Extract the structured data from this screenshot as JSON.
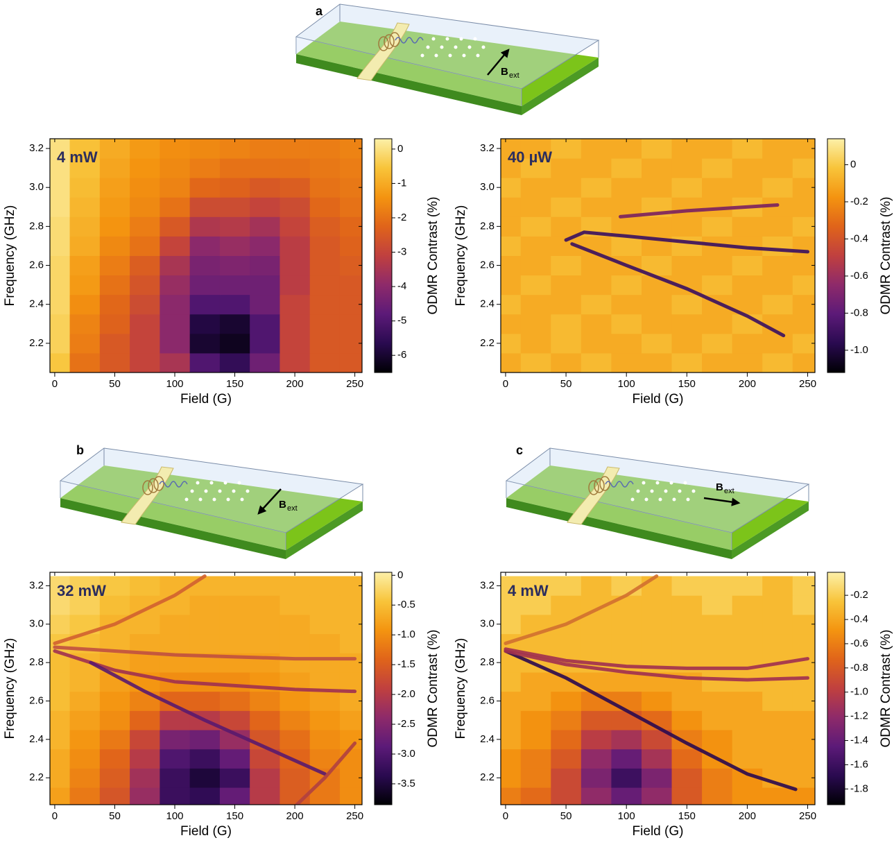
{
  "chart_data": [
    {
      "type": "heatmap",
      "panel_title": "4 mW",
      "xlabel": "Field (G)",
      "ylabel": "Frequency (GHz)",
      "zlabel": "ODMR Contrast (%)",
      "x": [
        0,
        25,
        50,
        75,
        100,
        125,
        150,
        175,
        200,
        225,
        250
      ],
      "y": [
        2.1,
        2.2,
        2.3,
        2.4,
        2.5,
        2.6,
        2.7,
        2.8,
        2.9,
        3.0,
        3.1,
        3.2
      ],
      "z": [
        [
          -0.5,
          -2,
          -2.5,
          -3,
          -3.5,
          -5,
          -5.5,
          -4.5,
          -3,
          -2.5,
          -2.5
        ],
        [
          -0.3,
          -1.8,
          -2.5,
          -3,
          -4,
          -6,
          -6.2,
          -5,
          -3,
          -2.5,
          -2.5
        ],
        [
          -0.3,
          -1.7,
          -2.3,
          -3,
          -4,
          -5.8,
          -6,
          -5,
          -3,
          -2.5,
          -2.5
        ],
        [
          -0.2,
          -1.5,
          -2.2,
          -2.8,
          -4,
          -5,
          -5,
          -4.5,
          -3,
          -2.5,
          -2.5
        ],
        [
          -0.2,
          -1.3,
          -2,
          -2.6,
          -3.8,
          -4.5,
          -4.5,
          -4.5,
          -3.2,
          -2.5,
          -2.5
        ],
        [
          -0.2,
          -1.2,
          -1.8,
          -2.4,
          -3.5,
          -4.3,
          -4.2,
          -4.3,
          -3.2,
          -2.5,
          -2.4
        ],
        [
          -0.1,
          -1,
          -1.6,
          -2,
          -3,
          -4,
          -3.8,
          -4,
          -3.2,
          -2.5,
          -2.3
        ],
        [
          -0.1,
          -0.9,
          -1.4,
          -1.8,
          -2.5,
          -3.4,
          -3.3,
          -3.6,
          -3,
          -2.4,
          -2.2
        ],
        [
          0,
          -0.8,
          -1.3,
          -1.6,
          -2,
          -2.8,
          -2.8,
          -3,
          -2.8,
          -2.2,
          -2
        ],
        [
          0,
          -0.7,
          -1.2,
          -1.5,
          -1.7,
          -2.2,
          -2.3,
          -2.5,
          -2.4,
          -2,
          -1.9
        ],
        [
          0,
          -0.6,
          -1.1,
          -1.4,
          -1.6,
          -1.8,
          -2,
          -2,
          -2,
          -1.9,
          -1.8
        ],
        [
          0,
          -0.6,
          -1,
          -1.3,
          -1.5,
          -1.6,
          -1.7,
          -1.8,
          -1.8,
          -1.8,
          -1.7
        ]
      ],
      "xlim": [
        -4,
        256
      ],
      "ylim": [
        2.05,
        3.25
      ],
      "zlim": [
        -6.5,
        0.3
      ],
      "xticks": [
        0,
        50,
        100,
        150,
        200,
        250
      ],
      "yticks": [
        2.2,
        2.4,
        2.6,
        2.8,
        {
          "value": 3,
          "label": "3.0"
        },
        3.2
      ],
      "zticks": [
        0,
        -1,
        -2,
        -3,
        -4,
        -5,
        -6
      ],
      "colormap": [
        "#000004",
        "#2a0a50",
        "#5c1a78",
        "#8e2a6a",
        "#c0403f",
        "#e0641a",
        "#f49410",
        "#f8c43a",
        "#fcf0a8"
      ],
      "lines": []
    },
    {
      "type": "heatmap",
      "panel_title": "40 µW",
      "xlabel": "Field (G)",
      "ylabel": "Frequency (GHz)",
      "zlabel": "ODMR Contrast (%)",
      "x": [
        0,
        25,
        50,
        75,
        100,
        125,
        150,
        175,
        200,
        225,
        250
      ],
      "y": [
        2.1,
        2.2,
        2.3,
        2.4,
        2.5,
        2.6,
        2.7,
        2.8,
        2.9,
        3.0,
        3.1,
        3.2
      ],
      "z": [
        [
          -0.1,
          -0.05,
          -0.1,
          -0.05,
          -0.1,
          -0.1,
          -0.05,
          -0.1,
          -0.1,
          -0.05,
          -0.1
        ],
        [
          -0.05,
          -0.1,
          -0.05,
          -0.1,
          -0.1,
          -0.05,
          -0.1,
          -0.05,
          -0.1,
          -0.1,
          -0.05
        ],
        [
          -0.1,
          -0.1,
          -0.05,
          -0.1,
          -0.05,
          -0.1,
          -0.1,
          -0.1,
          -0.05,
          -0.1,
          -0.1
        ],
        [
          -0.05,
          -0.1,
          -0.1,
          -0.05,
          -0.1,
          -0.1,
          -0.05,
          -0.1,
          -0.1,
          -0.05,
          -0.1
        ],
        [
          -0.1,
          -0.05,
          -0.1,
          -0.1,
          -0.05,
          -0.1,
          -0.1,
          -0.05,
          -0.1,
          -0.1,
          -0.05
        ],
        [
          -0.1,
          -0.1,
          -0.05,
          -0.1,
          -0.1,
          -0.05,
          -0.1,
          -0.1,
          -0.05,
          -0.1,
          -0.1
        ],
        [
          -0.05,
          -0.1,
          -0.1,
          -0.1,
          -0.05,
          -0.1,
          -0.05,
          -0.1,
          -0.1,
          -0.05,
          -0.1
        ],
        [
          -0.1,
          -0.05,
          -0.1,
          -0.05,
          -0.1,
          -0.1,
          -0.1,
          -0.05,
          -0.1,
          -0.1,
          -0.05
        ],
        [
          -0.1,
          -0.1,
          -0.05,
          -0.1,
          -0.1,
          -0.05,
          -0.1,
          -0.1,
          -0.05,
          -0.1,
          -0.1
        ],
        [
          -0.05,
          -0.1,
          -0.1,
          -0.05,
          -0.1,
          -0.1,
          -0.05,
          -0.1,
          -0.1,
          -0.05,
          -0.1
        ],
        [
          -0.1,
          -0.05,
          -0.1,
          -0.1,
          -0.05,
          -0.1,
          -0.1,
          -0.05,
          -0.1,
          -0.1,
          -0.05
        ],
        [
          -0.1,
          -0.1,
          -0.05,
          -0.1,
          -0.1,
          -0.05,
          -0.1,
          -0.1,
          -0.05,
          -0.1,
          -0.1
        ]
      ],
      "xlim": [
        -4,
        256
      ],
      "ylim": [
        2.05,
        3.25
      ],
      "zlim": [
        -1.12,
        0.14
      ],
      "xticks": [
        0,
        50,
        100,
        150,
        200,
        250
      ],
      "yticks": [
        2.2,
        2.4,
        2.6,
        2.8,
        {
          "value": 3,
          "label": "3.0"
        },
        3.2
      ],
      "zticks": [
        0,
        -0.2,
        -0.4,
        -0.6,
        -0.8,
        {
          "value": -1,
          "label": "-1.0"
        }
      ],
      "colormap": [
        "#000004",
        "#2a0a50",
        "#5c1a78",
        "#8e2a6a",
        "#c0403f",
        "#e0641a",
        "#f49410",
        "#f8c43a",
        "#fcf0a8"
      ],
      "lines": [
        {
          "x": [
            95,
            150,
            225
          ],
          "values": [
            2.85,
            2.88,
            2.91
          ],
          "color": "#7a2060"
        },
        {
          "x": [
            50,
            65,
            100,
            150,
            200,
            250
          ],
          "values": [
            2.73,
            2.77,
            2.75,
            2.72,
            2.69,
            2.67
          ],
          "color": "#3a1060"
        },
        {
          "x": [
            55,
            100,
            150,
            200,
            230
          ],
          "values": [
            2.71,
            2.6,
            2.48,
            2.34,
            2.24
          ],
          "color": "#3a1060"
        }
      ]
    },
    {
      "type": "heatmap",
      "panel_title": "32 mW",
      "xlabel": "Field (G)",
      "ylabel": "Frequency (GHz)",
      "zlabel": "ODMR Contrast (%)",
      "x": [
        0,
        25,
        50,
        75,
        100,
        125,
        150,
        175,
        200,
        225,
        250
      ],
      "y": [
        2.1,
        2.2,
        2.3,
        2.4,
        2.5,
        2.6,
        2.7,
        2.8,
        2.9,
        3.0,
        3.1,
        3.2
      ],
      "z": [
        [
          -0.8,
          -1.2,
          -1.6,
          -2.3,
          -3.2,
          -3.3,
          -2.8,
          -2,
          -1.5,
          -1.2,
          -1
        ],
        [
          -0.7,
          -1.1,
          -1.5,
          -2.2,
          -3.2,
          -3.5,
          -3.2,
          -2,
          -1.5,
          -1.2,
          -1
        ],
        [
          -0.7,
          -1,
          -1.4,
          -2,
          -3,
          -3.2,
          -2.8,
          -1.8,
          -1.4,
          -1.1,
          -1
        ],
        [
          -0.6,
          -0.9,
          -1.2,
          -1.8,
          -2.6,
          -2.7,
          -2.3,
          -1.6,
          -1.3,
          -1,
          -0.9
        ],
        [
          -0.6,
          -0.8,
          -1,
          -1.4,
          -2,
          -2,
          -1.8,
          -1.4,
          -1.1,
          -0.9,
          -0.8
        ],
        [
          -0.5,
          -0.7,
          -0.9,
          -1.1,
          -1.4,
          -1.4,
          -1.3,
          -1.1,
          -0.9,
          -0.8,
          -0.7
        ],
        [
          -0.5,
          -0.6,
          -0.8,
          -0.9,
          -1,
          -1,
          -1,
          -0.9,
          -0.8,
          -0.7,
          -0.7
        ],
        [
          -0.5,
          -0.6,
          -0.7,
          -0.8,
          -0.8,
          -0.8,
          -0.8,
          -0.8,
          -0.7,
          -0.7,
          -0.7
        ],
        [
          -0.4,
          -0.5,
          -0.6,
          -0.7,
          -0.7,
          -0.7,
          -0.7,
          -0.7,
          -0.7,
          -0.7,
          -0.6
        ],
        [
          -0.3,
          -0.4,
          -0.6,
          -0.6,
          -0.7,
          -0.7,
          -0.7,
          -0.7,
          -0.7,
          -0.6,
          -0.6
        ],
        [
          -0.2,
          -0.3,
          -0.5,
          -0.6,
          -0.6,
          -0.7,
          -0.7,
          -0.7,
          -0.6,
          -0.6,
          -0.6
        ],
        [
          -0.2,
          -0.3,
          -0.4,
          -0.5,
          -0.6,
          -0.6,
          -0.6,
          -0.6,
          -0.6,
          -0.6,
          -0.6
        ]
      ],
      "xlim": [
        -4,
        256
      ],
      "ylim": [
        2.06,
        3.27
      ],
      "zlim": [
        -3.85,
        0.05
      ],
      "xticks": [
        0,
        50,
        100,
        150,
        200,
        250
      ],
      "yticks": [
        2.2,
        2.4,
        2.6,
        2.8,
        {
          "value": 3,
          "label": "3.0"
        },
        3.2
      ],
      "zticks": [
        0,
        -0.5,
        {
          "value": -1,
          "label": "-1.0"
        },
        -1.5,
        {
          "value": -2,
          "label": "-2.0"
        },
        -2.5,
        {
          "value": -3,
          "label": "-3.0"
        },
        -3.5
      ],
      "colormap": [
        "#000004",
        "#2a0a50",
        "#5c1a78",
        "#8e2a6a",
        "#c0403f",
        "#e0641a",
        "#f49410",
        "#f8c43a",
        "#fcf0a8"
      ],
      "lines": [
        {
          "x": [
            0,
            50,
            100,
            150,
            200,
            250
          ],
          "values": [
            2.86,
            2.76,
            2.7,
            2.68,
            2.66,
            2.65
          ],
          "color": "#a03050"
        },
        {
          "x": [
            0,
            50,
            100,
            150,
            200,
            250
          ],
          "values": [
            2.88,
            2.86,
            2.84,
            2.83,
            2.82,
            2.82
          ],
          "color": "#c05040"
        },
        {
          "x": [
            30,
            75,
            125,
            175,
            225
          ],
          "values": [
            2.8,
            2.65,
            2.5,
            2.36,
            2.22
          ],
          "color": "#5a1a6e"
        },
        {
          "x": [
            0,
            50,
            100,
            125
          ],
          "values": [
            2.9,
            3.0,
            3.15,
            3.25
          ],
          "color": "#d06030"
        },
        {
          "x": [
            200,
            225,
            250
          ],
          "values": [
            2.05,
            2.2,
            2.38
          ],
          "color": "#b04040"
        }
      ]
    },
    {
      "type": "heatmap",
      "panel_title": "4 mW",
      "xlabel": "Field (G)",
      "ylabel": "Frequency (GHz)",
      "zlabel": "ODMR Contrast (%)",
      "x": [
        0,
        25,
        50,
        75,
        100,
        125,
        150,
        175,
        200,
        225,
        250
      ],
      "y": [
        2.1,
        2.2,
        2.3,
        2.4,
        2.5,
        2.6,
        2.7,
        2.8,
        2.9,
        3.0,
        3.1,
        3.2
      ],
      "z": [
        [
          -0.6,
          -0.7,
          -0.9,
          -1.2,
          -1.4,
          -1.2,
          -0.8,
          -0.6,
          -0.5,
          -0.5,
          -0.5
        ],
        [
          -0.5,
          -0.6,
          -0.9,
          -1.3,
          -1.6,
          -1.3,
          -0.8,
          -0.6,
          -0.5,
          -0.4,
          -0.4
        ],
        [
          -0.5,
          -0.6,
          -0.8,
          -1.2,
          -1.4,
          -1.1,
          -0.7,
          -0.5,
          -0.4,
          -0.4,
          -0.4
        ],
        [
          -0.4,
          -0.5,
          -0.7,
          -1,
          -1.1,
          -0.9,
          -0.6,
          -0.5,
          -0.4,
          -0.4,
          -0.4
        ],
        [
          -0.4,
          -0.5,
          -0.6,
          -0.8,
          -0.8,
          -0.7,
          -0.5,
          -0.4,
          -0.4,
          -0.4,
          -0.4
        ],
        [
          -0.4,
          -0.4,
          -0.5,
          -0.6,
          -0.6,
          -0.5,
          -0.4,
          -0.4,
          -0.4,
          -0.3,
          -0.3
        ],
        [
          -0.3,
          -0.4,
          -0.4,
          -0.4,
          -0.4,
          -0.4,
          -0.4,
          -0.3,
          -0.3,
          -0.3,
          -0.3
        ],
        [
          -0.3,
          -0.3,
          -0.3,
          -0.3,
          -0.3,
          -0.3,
          -0.3,
          -0.3,
          -0.3,
          -0.3,
          -0.3
        ],
        [
          -0.3,
          -0.3,
          -0.3,
          -0.3,
          -0.3,
          -0.3,
          -0.3,
          -0.3,
          -0.3,
          -0.3,
          -0.3
        ],
        [
          -0.2,
          -0.3,
          -0.3,
          -0.3,
          -0.3,
          -0.3,
          -0.3,
          -0.3,
          -0.3,
          -0.3,
          -0.3
        ],
        [
          -0.2,
          -0.2,
          -0.3,
          -0.3,
          -0.3,
          -0.3,
          -0.3,
          -0.2,
          -0.3,
          -0.3,
          -0.2
        ],
        [
          -0.2,
          -0.2,
          -0.2,
          -0.3,
          -0.2,
          -0.3,
          -0.2,
          -0.2,
          -0.2,
          -0.3,
          -0.2
        ]
      ],
      "xlim": [
        -4,
        256
      ],
      "ylim": [
        2.06,
        3.27
      ],
      "zlim": [
        -1.93,
        -0.01
      ],
      "xticks": [
        0,
        50,
        100,
        150,
        200,
        250
      ],
      "yticks": [
        2.2,
        2.4,
        2.6,
        2.8,
        {
          "value": 3,
          "label": "3.0"
        },
        3.2
      ],
      "zticks": [
        -0.2,
        -0.4,
        -0.6,
        -0.8,
        {
          "value": -1,
          "label": "-1.0"
        },
        -1.2,
        -1.4,
        -1.6,
        -1.8
      ],
      "colormap": [
        "#000004",
        "#2a0a50",
        "#5c1a78",
        "#8e2a6a",
        "#c0403f",
        "#e0641a",
        "#f49410",
        "#f8c43a",
        "#fcf0a8"
      ],
      "lines": [
        {
          "x": [
            0,
            50,
            100,
            150,
            200,
            240
          ],
          "values": [
            2.86,
            2.72,
            2.55,
            2.38,
            2.22,
            2.14
          ],
          "color": "#2a0a50"
        },
        {
          "x": [
            0,
            50,
            100,
            150,
            200,
            250
          ],
          "values": [
            2.87,
            2.81,
            2.78,
            2.77,
            2.77,
            2.82
          ],
          "color": "#a03050"
        },
        {
          "x": [
            0,
            50,
            100,
            150,
            200,
            250
          ],
          "values": [
            2.86,
            2.79,
            2.75,
            2.72,
            2.71,
            2.72
          ],
          "color": "#a03050"
        },
        {
          "x": [
            0,
            50,
            100,
            125
          ],
          "values": [
            2.9,
            3.0,
            3.15,
            3.25
          ],
          "color": "#d07030"
        }
      ]
    }
  ],
  "illustrations": [
    {
      "label": "a",
      "field": "B",
      "field_sub": "ext"
    },
    {
      "label": "b",
      "field": "B",
      "field_sub": "ext"
    },
    {
      "label": "c",
      "field": "B",
      "field_sub": "ext"
    }
  ]
}
